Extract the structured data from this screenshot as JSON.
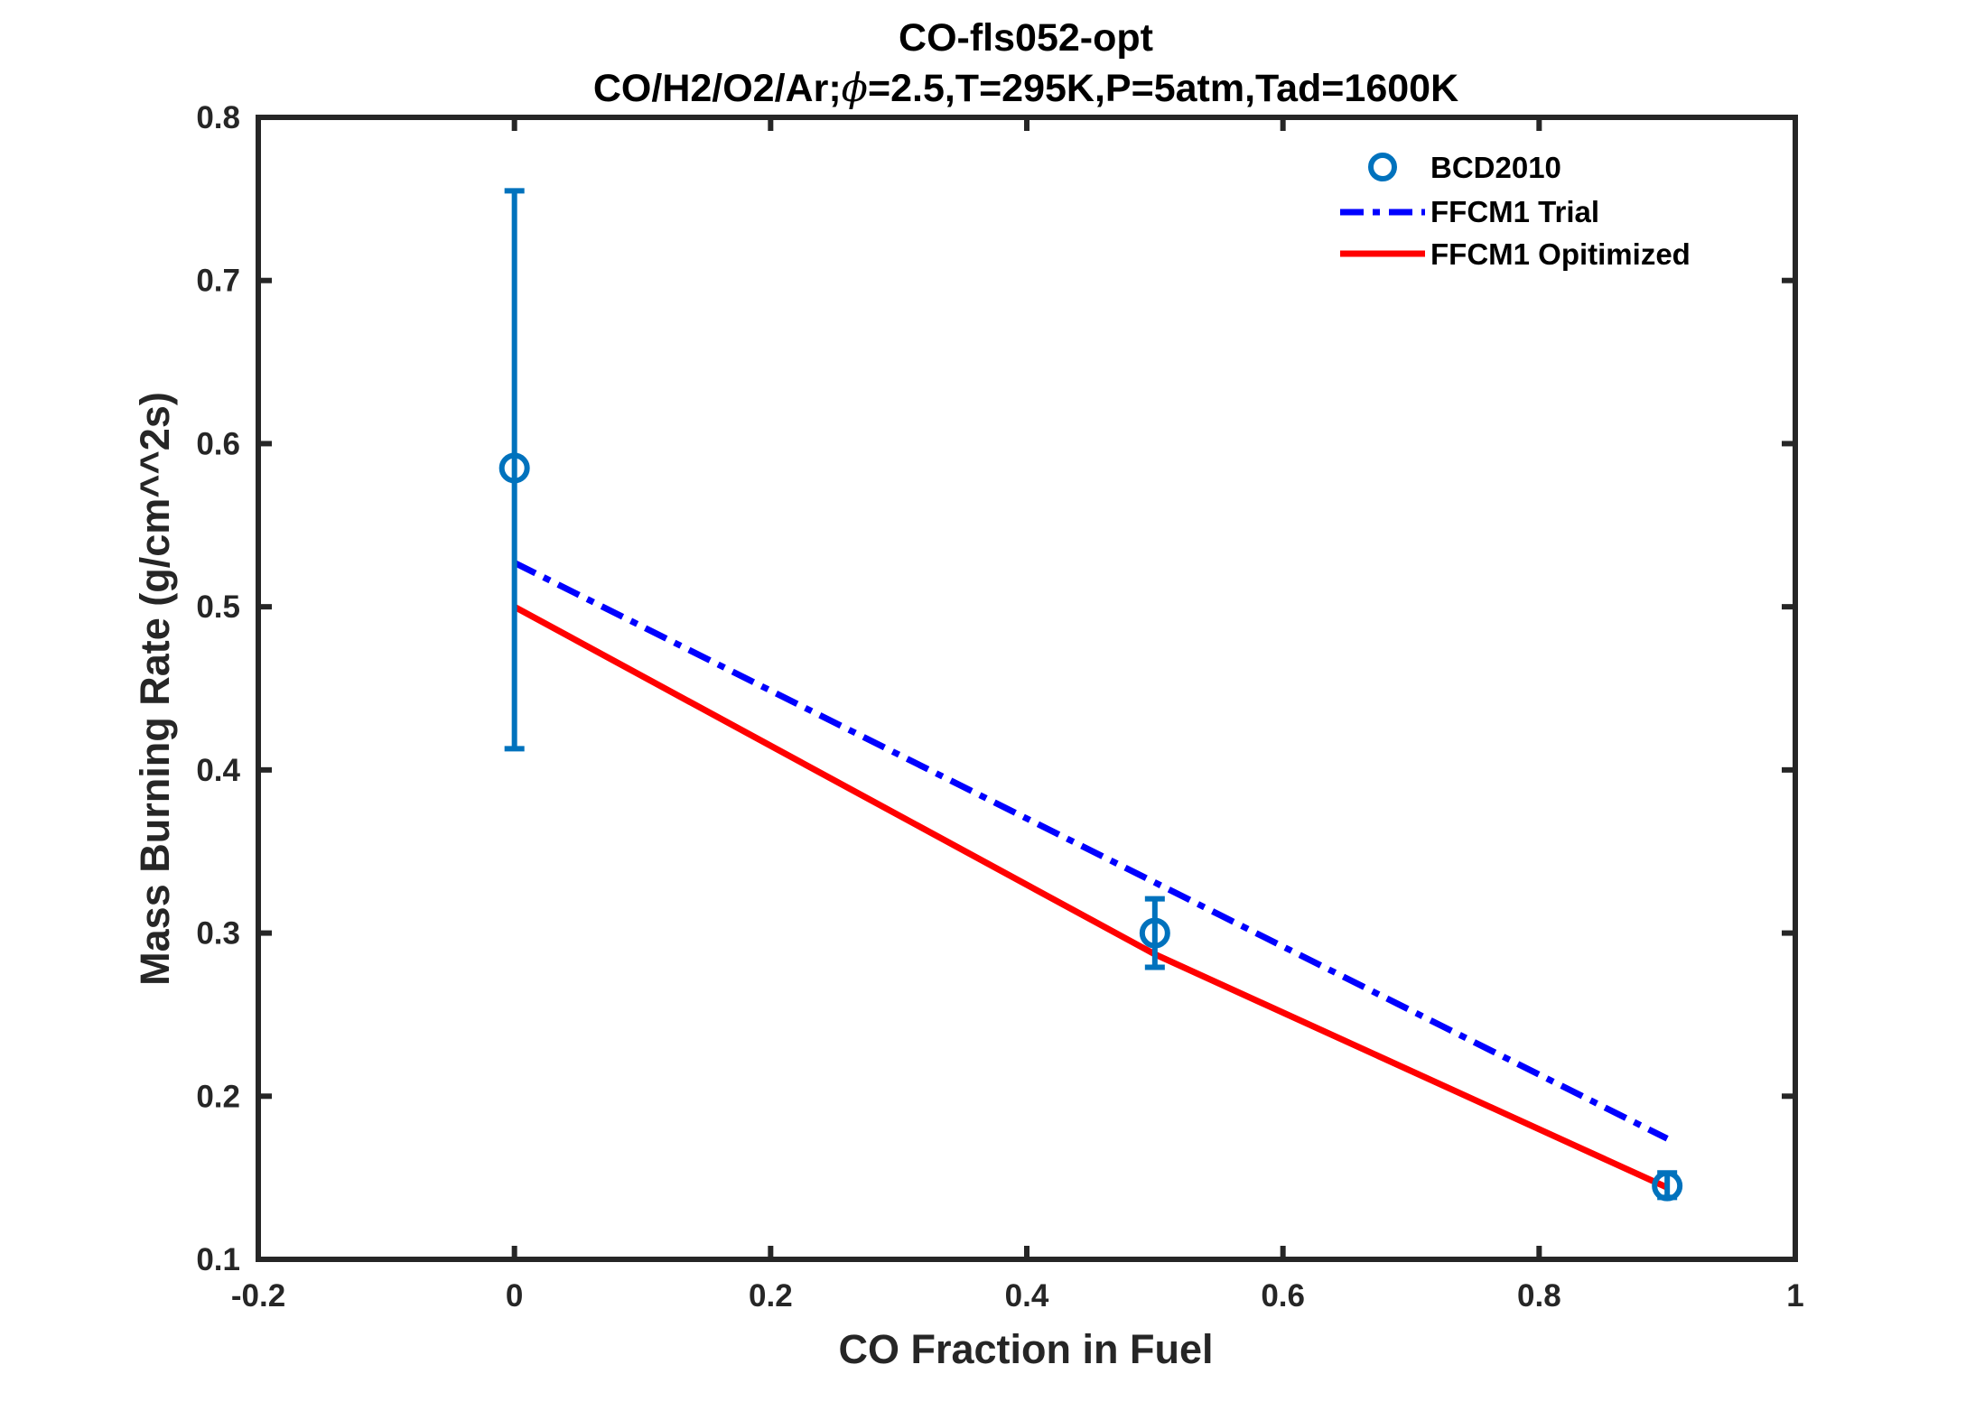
{
  "chart_data": {
    "type": "line",
    "title_line1": "CO-fls052-opt",
    "title_line2": {
      "prefix": "CO/H2/O2/Ar;",
      "symbol": "ϕ",
      "suffix": "=2.5,T=295K,P=5atm,Tad=1600K"
    },
    "xlabel": "CO Fraction in Fuel",
    "ylabel": "Mass Burning Rate (g/cm^^2s)",
    "xlim": [
      -0.2,
      1
    ],
    "ylim": [
      0.1,
      0.8
    ],
    "xticks": [
      -0.2,
      0,
      0.2,
      0.4,
      0.6,
      0.8,
      1
    ],
    "xtick_labels": [
      "-0.2",
      "0",
      "0.2",
      "0.4",
      "0.6",
      "0.8",
      "1"
    ],
    "yticks": [
      0.1,
      0.2,
      0.3,
      0.4,
      0.5,
      0.6,
      0.7,
      0.8
    ],
    "ytick_labels": [
      "0.1",
      "0.2",
      "0.3",
      "0.4",
      "0.5",
      "0.6",
      "0.7",
      "0.8"
    ],
    "legend_position": "top-right",
    "experiment": {
      "name": "BCD2010",
      "color": "#0072BD",
      "marker": "circle",
      "points": [
        {
          "x": 0,
          "y": 0.585,
          "ylow": 0.413,
          "yhigh": 0.755
        },
        {
          "x": 0.5,
          "y": 0.3,
          "ylow": 0.279,
          "yhigh": 0.321
        },
        {
          "x": 0.9,
          "y": 0.145,
          "ylow": 0.138,
          "yhigh": 0.153
        }
      ]
    },
    "series": [
      {
        "name": "FFCM1 Trial",
        "color": "#0000FF",
        "style": "dash-dot",
        "x": [
          0,
          0.5,
          0.9
        ],
        "y": [
          0.527,
          0.331,
          0.174
        ]
      },
      {
        "name": "FFCM1 Opitimized",
        "color": "#FF0000",
        "style": "solid",
        "x": [
          0,
          0.5,
          0.9
        ],
        "y": [
          0.5,
          0.287,
          0.144
        ]
      }
    ]
  }
}
